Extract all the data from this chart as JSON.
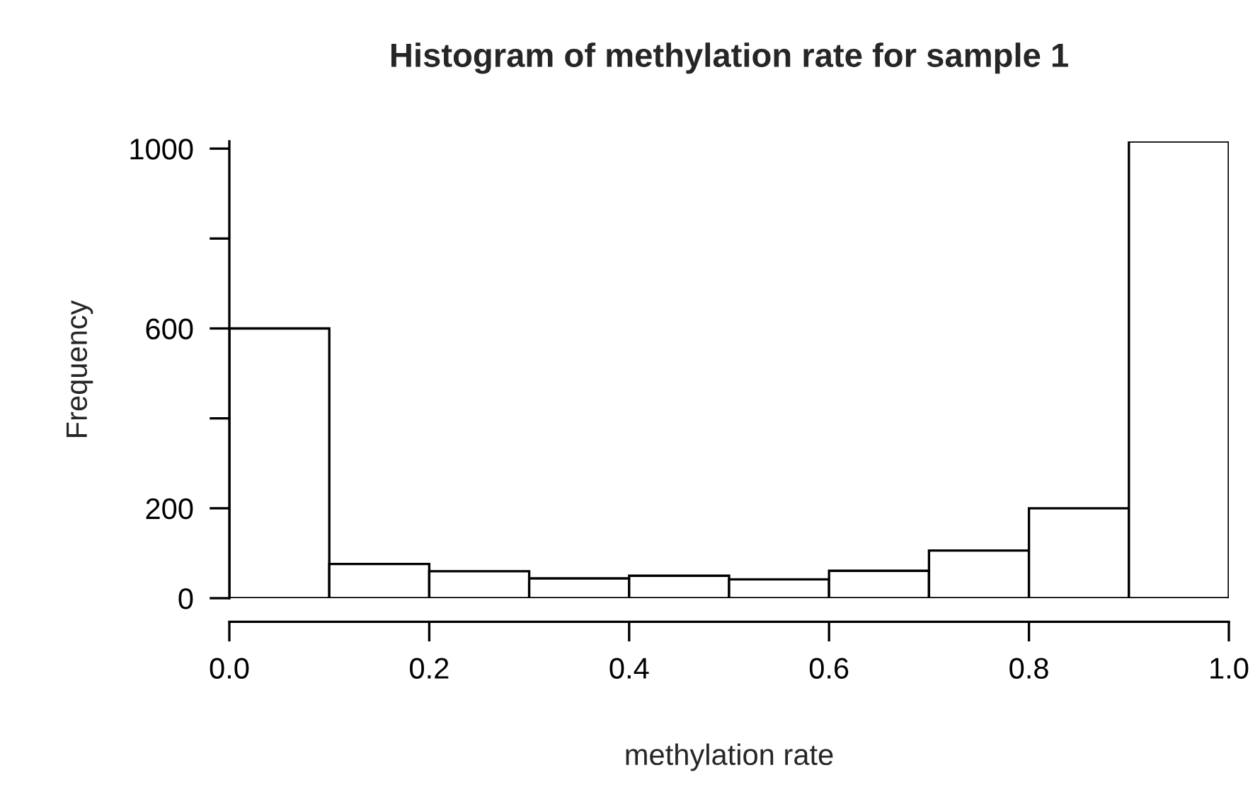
{
  "chart_data": {
    "type": "histogram",
    "title": "Histogram of methylation rate for sample 1",
    "xlabel": "methylation rate",
    "ylabel": "Frequency",
    "bins": [
      0.0,
      0.1,
      0.2,
      0.3,
      0.4,
      0.5,
      0.6,
      0.7,
      0.8,
      0.9,
      1.0
    ],
    "values": [
      600,
      76,
      60,
      44,
      50,
      42,
      61,
      106,
      200,
      1016
    ],
    "color": "#ffffff",
    "xlim": [
      0,
      1
    ],
    "xticks": [
      {
        "value": 0,
        "label": "0.0"
      },
      {
        "value": 0.2,
        "label": "0.2"
      },
      {
        "value": 0.4,
        "label": "0.4"
      },
      {
        "value": 0.6,
        "label": "0.6"
      },
      {
        "value": 0.8,
        "label": "0.8"
      },
      {
        "value": 1,
        "label": "1.0"
      }
    ],
    "ylim": [
      0,
      1016
    ],
    "yticks": [
      0,
      200,
      {
        "value": 400,
        "label": null
      },
      600,
      {
        "value": 800,
        "label": null
      },
      1000
    ],
    "grid": false,
    "legend": false
  }
}
